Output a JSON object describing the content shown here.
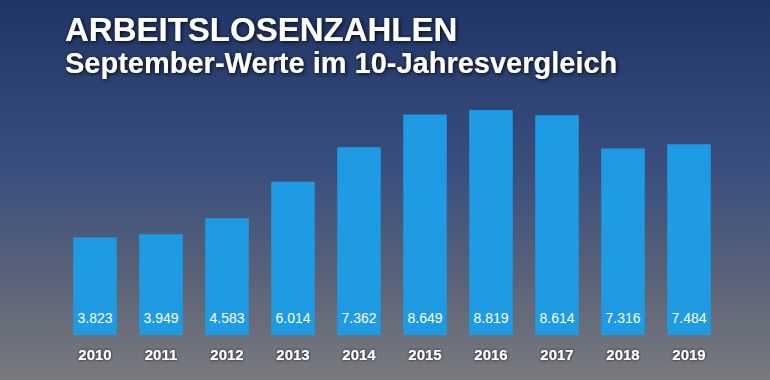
{
  "chart_data": {
    "type": "bar",
    "title": "ARBEITSLOSENZAHLEN",
    "subtitle": "September-Werte im 10-Jahresvergleich",
    "categories": [
      "2010",
      "2011",
      "2012",
      "2013",
      "2014",
      "2015",
      "2016",
      "2017",
      "2018",
      "2019"
    ],
    "values": [
      3823,
      3949,
      4583,
      6014,
      7362,
      8649,
      8819,
      8614,
      7316,
      7484
    ],
    "value_labels": [
      "3.823",
      "3.949",
      "4.583",
      "6.014",
      "7.362",
      "8.649",
      "8.819",
      "8.614",
      "7.316",
      "7.484"
    ],
    "color": "#1e9be3",
    "ylim": [
      0,
      10000
    ],
    "grid": false,
    "data_labels": true,
    "tick_labels": "x"
  }
}
